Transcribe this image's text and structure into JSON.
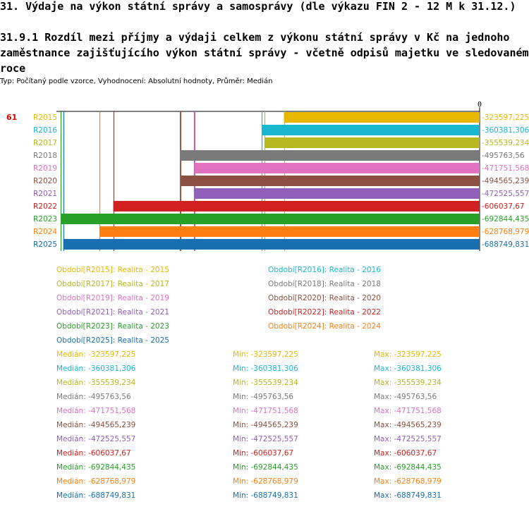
{
  "page_title": "31. Výdaje na výkon státní správy a samosprávy (dle výkazu FIN 2 - 12 M k 31.12.)",
  "chart_title": "31.9.1 Rozdíl mezi příjmy a výdaji celkem z výkonu státní správy v Kč na jednoho zaměstnance zajišťujícího výkon státní správy - včetně odpisů majetku ve sledovaném roce",
  "subtitle": "Typ: Počítaný podle vzorce, Vyhodnocení: Absolutní hodnoty, Průměr: Medián",
  "entity_value": "61",
  "chart_data": {
    "type": "bar",
    "orientation": "horizontal",
    "zero_label": "0",
    "xlim": [
      -700000,
      0
    ],
    "categories": [
      "R2015",
      "R2016",
      "R2017",
      "R2018",
      "R2019",
      "R2020",
      "R2021",
      "R2022",
      "R2023",
      "R2024",
      "R2025"
    ],
    "value_labels": [
      "-323597,225",
      "-360381,306",
      "-355539,234",
      "-495763,56",
      "-471751,568",
      "-494565,239",
      "-472525,557",
      "-606037,67",
      "-692844,435",
      "-628768,979",
      "-688749,831"
    ],
    "values": [
      -323597.225,
      -360381.306,
      -355539.234,
      -495763.56,
      -471751.568,
      -494565.239,
      -472525.557,
      -606037.67,
      -692844.435,
      -628768.979,
      -688749.831
    ],
    "colors": [
      "#e8b800",
      "#1ab8d0",
      "#b8b820",
      "#7a7a7a",
      "#e070c0",
      "#8b5040",
      "#9060b8",
      "#d02020",
      "#28a028",
      "#ff8010",
      "#1870b0"
    ]
  },
  "legend": [
    "Období[R2015]: Realita - 2015",
    "Období[R2016]: Realita - 2016",
    "Období[R2017]: Realita - 2017",
    "Období[R2018]: Realita - 2018",
    "Období[R2019]: Realita - 2019",
    "Období[R2020]: Realita - 2020",
    "Období[R2021]: Realita - 2021",
    "Období[R2022]: Realita - 2022",
    "Období[R2023]: Realita - 2023",
    "Období[R2024]: Realita - 2024",
    "Období[R2025]: Realita - 2025"
  ],
  "stats": {
    "median_prefix": "Medián: ",
    "min_prefix": "Min: ",
    "max_prefix": "Max: "
  }
}
